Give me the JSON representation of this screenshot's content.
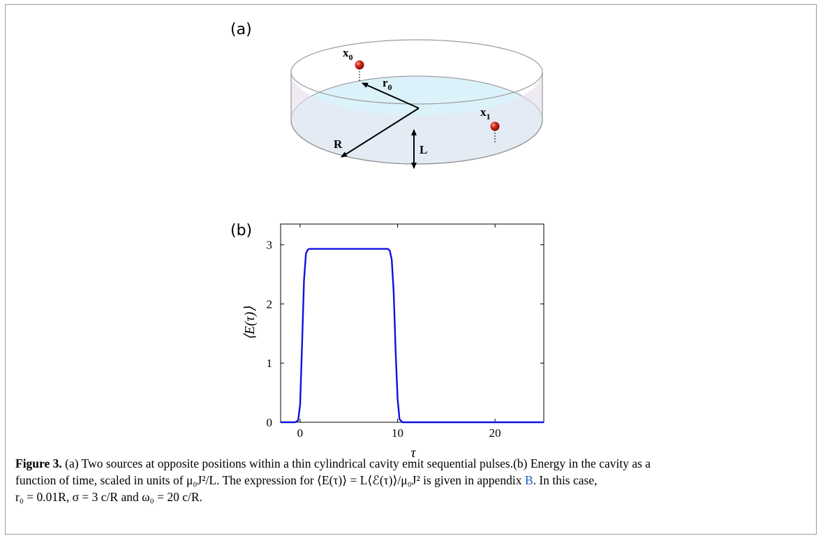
{
  "panel_a": {
    "label": "(a)",
    "labels": {
      "x0": "x",
      "x0_sub": "0",
      "r0": "r",
      "r0_sub": "0",
      "x1": "x",
      "x1_sub": "1",
      "R": "R",
      "L": "L"
    }
  },
  "panel_b": {
    "label": "(b)"
  },
  "colors": {
    "curve": "#1010e0",
    "cavity_floor": "#dcf2fb",
    "source": "#d62a1e"
  },
  "chart_data": {
    "type": "line",
    "title": "",
    "xlabel": "τ",
    "ylabel": "⟨E(τ)⟩",
    "xlim": [
      -2,
      25
    ],
    "ylim": [
      0,
      3.35
    ],
    "xticks": [
      0,
      10,
      20
    ],
    "yticks": [
      0,
      1,
      2,
      3
    ],
    "grid": false,
    "series": [
      {
        "x": [
          -2,
          -0.5,
          -0.2,
          0,
          0.2,
          0.4,
          0.6,
          0.8,
          1.0,
          9.0,
          9.2,
          9.4,
          9.6,
          9.8,
          10.0,
          10.2,
          10.5,
          25
        ],
        "y": [
          0,
          0,
          0.03,
          0.3,
          1.3,
          2.4,
          2.85,
          2.92,
          2.93,
          2.93,
          2.9,
          2.75,
          2.2,
          1.2,
          0.4,
          0.05,
          0,
          0
        ]
      }
    ]
  },
  "caption": {
    "fig_label": "Figure 3.",
    "line1": " (a) Two sources at opposite positions within a thin cylindrical cavity emit sequential pulses.(b) Energy in the cavity as a",
    "line2a": "function of time, scaled in units of μ₀J²/L. The expression for ⟨E(τ)⟩ = L⟨ℰ(τ)⟩/μ₀J² is given in appendix ",
    "line2_link": "B",
    "line2b": ". In this case,",
    "line3": "r₀ = 0.01R, σ = 3 c/R and ω₀ = 20 c/R."
  }
}
